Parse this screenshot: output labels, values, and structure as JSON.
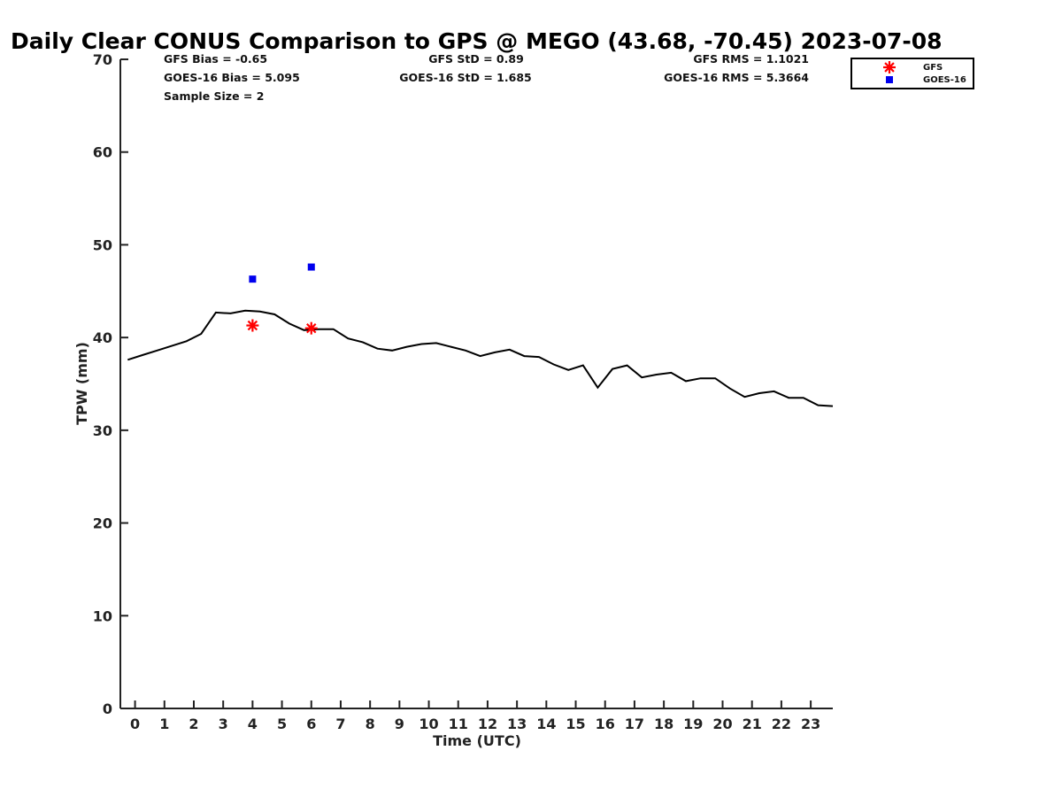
{
  "chart_data": {
    "type": "line",
    "title": "Daily Clear CONUS Comparison to GPS @ MEGO (43.68, -70.45) 2023-07-08",
    "xlabel": "Time (UTC)",
    "ylabel": "TPW (mm)",
    "xlim": [
      -0.5,
      23.75
    ],
    "ylim": [
      0,
      70
    ],
    "x_ticks": [
      "0",
      "1",
      "2",
      "3",
      "4",
      "5",
      "6",
      "7",
      "8",
      "9",
      "10",
      "11",
      "12",
      "13",
      "14",
      "15",
      "16",
      "17",
      "18",
      "19",
      "20",
      "21",
      "22",
      "23"
    ],
    "y_ticks": [
      "0",
      "10",
      "20",
      "30",
      "40",
      "50",
      "60",
      "70"
    ],
    "grid": false,
    "legend_position": "top-right",
    "gps_line": {
      "x": [
        -0.25,
        0.25,
        0.75,
        1.25,
        1.75,
        2.25,
        2.75,
        3.25,
        3.75,
        4.25,
        4.75,
        5.25,
        5.75,
        6.25,
        6.75,
        7.25,
        7.75,
        8.25,
        8.75,
        9.25,
        9.75,
        10.25,
        10.75,
        11.25,
        11.75,
        12.25,
        12.75,
        13.25,
        13.75,
        14.25,
        14.75,
        15.25,
        15.75,
        16.25,
        16.75,
        17.25,
        17.75,
        18.25,
        18.75,
        19.25,
        19.75,
        20.25,
        20.75,
        21.25,
        21.75,
        22.25,
        22.75,
        23.25,
        23.75
      ],
      "y": [
        37.6,
        38.1,
        38.6,
        39.1,
        39.6,
        40.4,
        42.7,
        42.6,
        42.9,
        42.8,
        42.5,
        41.5,
        40.8,
        40.9,
        40.9,
        39.9,
        39.5,
        38.8,
        38.6,
        39.0,
        39.3,
        39.4,
        39.0,
        38.6,
        38.0,
        38.4,
        38.7,
        38.0,
        37.9,
        37.1,
        36.5,
        37.0,
        34.6,
        36.6,
        37.0,
        35.7,
        36.0,
        36.2,
        35.3,
        35.6,
        35.6,
        34.5,
        33.6,
        34.0,
        34.2,
        33.5,
        33.5,
        32.7,
        32.6
      ]
    },
    "series": [
      {
        "name": "GFS",
        "marker": "asterisk",
        "color": "#ff0000",
        "x": [
          4,
          6
        ],
        "y": [
          41.3,
          41.0
        ]
      },
      {
        "name": "GOES-16",
        "marker": "square",
        "color": "#0000ee",
        "x": [
          4,
          6
        ],
        "y": [
          46.3,
          47.6
        ]
      }
    ],
    "stats": {
      "gfs_bias": "GFS Bias = -0.65",
      "goes_bias": "GOES-16 Bias = 5.095",
      "sample_size": "Sample Size = 2",
      "gfs_std": "GFS StD = 0.89",
      "goes_std": "GOES-16 StD = 1.685",
      "gfs_rms": "GFS RMS = 1.1021",
      "goes_rms": "GOES-16 RMS = 5.3664"
    }
  }
}
